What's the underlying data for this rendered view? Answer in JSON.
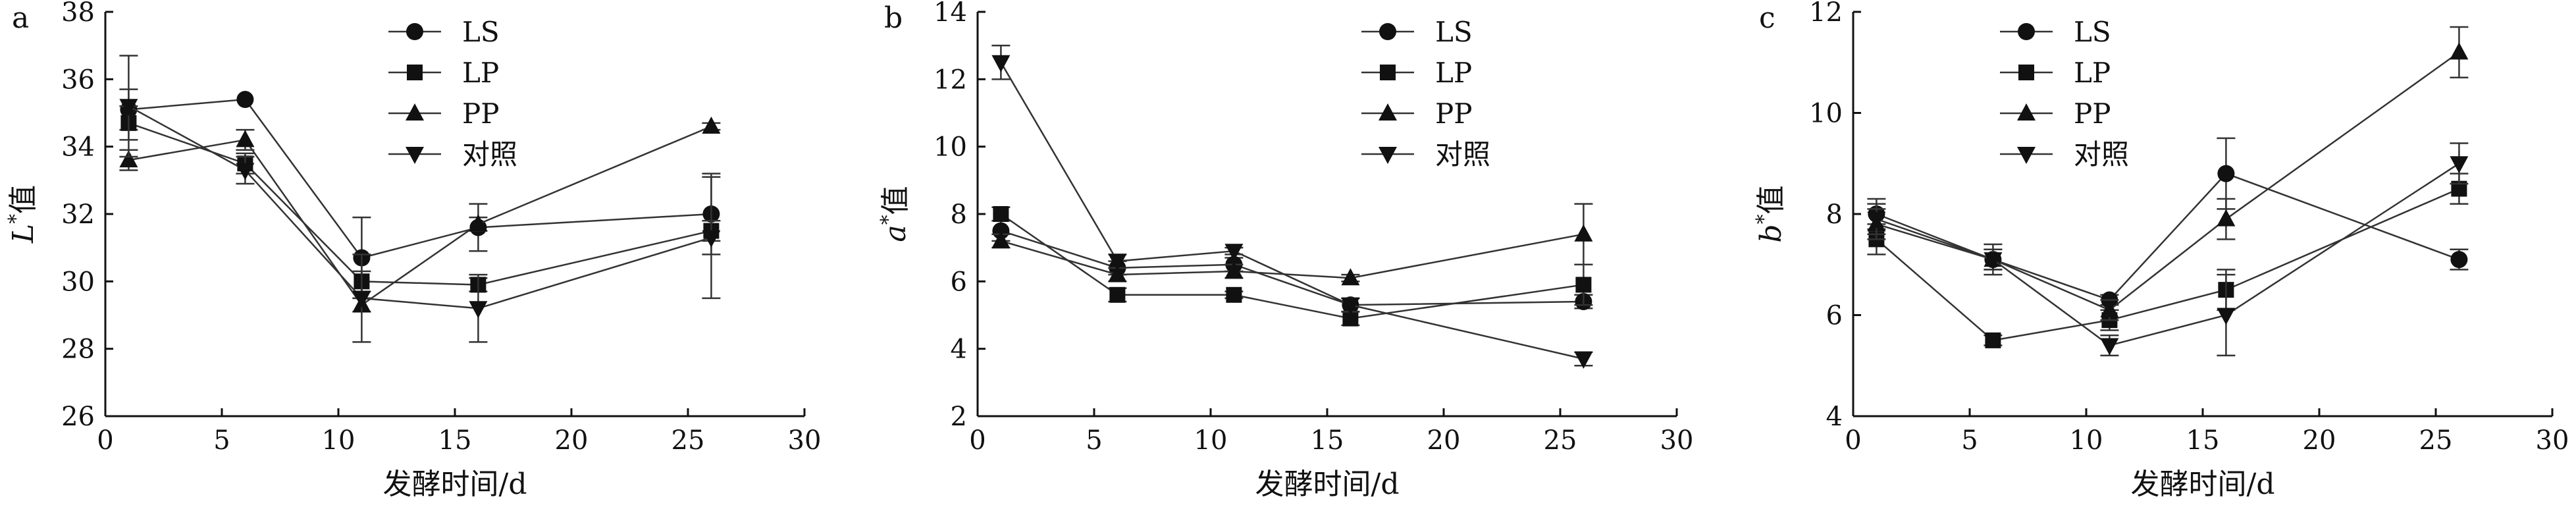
{
  "figure": {
    "xlabel": "发酵时间/d"
  },
  "chart_data": [
    {
      "panel": "a",
      "type": "line",
      "ylabel": "L*值",
      "ylabel_main": "L",
      "ylabel_sup": "*",
      "ylabel_tail": "值",
      "xlabel": "发酵时间/d",
      "xlim": [
        0,
        30
      ],
      "ylim": [
        26,
        38
      ],
      "xticks": [
        0,
        5,
        10,
        15,
        20,
        25,
        30
      ],
      "yticks": [
        26,
        28,
        30,
        32,
        34,
        36,
        38
      ],
      "legend": "top-center",
      "grid": false,
      "x": [
        1,
        6,
        11,
        16,
        26
      ],
      "series": [
        {
          "name": "LS",
          "marker": "circle",
          "values": [
            35.1,
            35.4,
            30.7,
            31.6,
            32.0
          ],
          "errors": [
            0.6,
            0,
            1.2,
            0.7,
            1.2
          ]
        },
        {
          "name": "LP",
          "marker": "square",
          "values": [
            34.7,
            33.5,
            30.0,
            29.9,
            31.5
          ],
          "errors": [
            0.5,
            0.3,
            0.3,
            0.2,
            0.3
          ]
        },
        {
          "name": "PP",
          "marker": "triangle-up",
          "values": [
            33.6,
            34.2,
            29.3,
            31.7,
            34.6
          ],
          "errors": [
            0.3,
            0.3,
            0.2,
            0.2,
            0.1
          ]
        },
        {
          "name": "对照",
          "marker": "triangle-down",
          "values": [
            35.2,
            33.3,
            29.5,
            29.2,
            31.3
          ],
          "errors": [
            1.5,
            0.4,
            1.3,
            1.0,
            1.8
          ]
        }
      ]
    },
    {
      "panel": "b",
      "type": "line",
      "ylabel": "a*值",
      "ylabel_main": "a",
      "ylabel_sup": "*",
      "ylabel_tail": "值",
      "xlabel": "发酵时间/d",
      "xlim": [
        0,
        30
      ],
      "ylim": [
        2,
        14
      ],
      "xticks": [
        0,
        5,
        10,
        15,
        20,
        25,
        30
      ],
      "yticks": [
        2,
        4,
        6,
        8,
        10,
        12,
        14
      ],
      "legend": "top-right",
      "grid": false,
      "x": [
        1,
        6,
        11,
        16,
        26
      ],
      "series": [
        {
          "name": "LS",
          "marker": "circle",
          "values": [
            7.5,
            6.4,
            6.5,
            5.3,
            5.4
          ],
          "errors": [
            0.3,
            0.2,
            0.2,
            0.2,
            0.2
          ]
        },
        {
          "name": "LP",
          "marker": "square",
          "values": [
            8.0,
            5.6,
            5.6,
            4.9,
            5.9
          ],
          "errors": [
            0.2,
            0.2,
            0.1,
            0.2,
            0.6
          ]
        },
        {
          "name": "PP",
          "marker": "triangle-up",
          "values": [
            7.2,
            6.2,
            6.3,
            6.1,
            7.4
          ],
          "errors": [
            0.2,
            0.2,
            0.2,
            0.1,
            0.9
          ]
        },
        {
          "name": "对照",
          "marker": "triangle-down",
          "values": [
            12.5,
            6.6,
            6.9,
            5.3,
            3.7
          ],
          "errors": [
            0.5,
            0.2,
            0.1,
            0.2,
            0.2
          ]
        }
      ]
    },
    {
      "panel": "c",
      "type": "line",
      "ylabel": "b*值",
      "ylabel_main": "b",
      "ylabel_sup": "*",
      "ylabel_tail": "值",
      "xlabel": "发酵时间/d",
      "xlim": [
        0,
        30
      ],
      "ylim": [
        4,
        12
      ],
      "xticks": [
        0,
        5,
        10,
        15,
        20,
        25,
        30
      ],
      "yticks": [
        4,
        6,
        8,
        10,
        12
      ],
      "legend": "top-center",
      "grid": false,
      "x": [
        1,
        6,
        11,
        16,
        26
      ],
      "series": [
        {
          "name": "LS",
          "marker": "circle",
          "values": [
            8.0,
            7.1,
            6.3,
            8.8,
            7.1
          ],
          "errors": [
            0.3,
            0.2,
            0.1,
            0.7,
            0.2
          ]
        },
        {
          "name": "LP",
          "marker": "square",
          "values": [
            7.5,
            5.5,
            5.9,
            6.5,
            8.5
          ],
          "errors": [
            0.3,
            0.1,
            0.2,
            0.4,
            0.3
          ]
        },
        {
          "name": "PP",
          "marker": "triangle-up",
          "values": [
            7.8,
            7.1,
            6.1,
            7.9,
            11.2
          ],
          "errors": [
            0.3,
            0.2,
            0.2,
            0.4,
            0.5
          ]
        },
        {
          "name": "对照",
          "marker": "triangle-down",
          "values": [
            7.9,
            7.1,
            5.4,
            6.0,
            9.0
          ],
          "errors": [
            0.3,
            0.3,
            0.2,
            0.8,
            0.4
          ]
        }
      ]
    }
  ]
}
